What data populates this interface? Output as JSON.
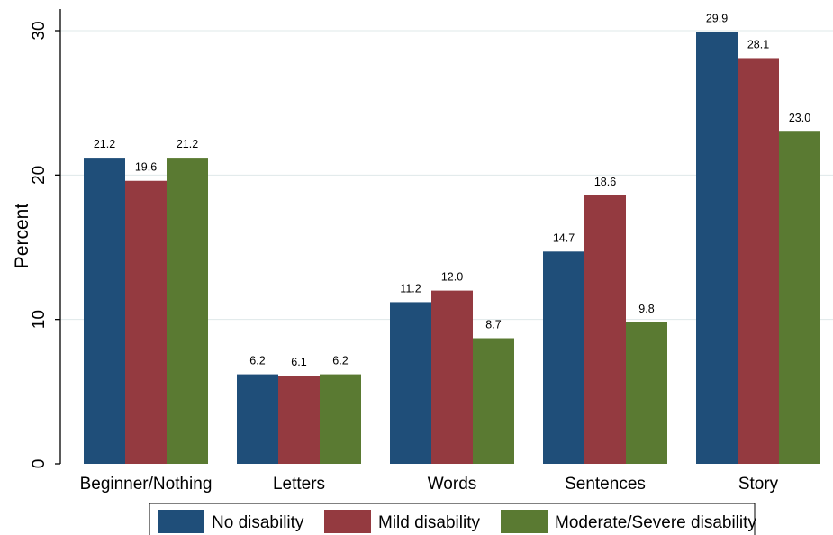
{
  "chart_data": {
    "type": "bar",
    "ylabel": "Percent",
    "xlabel": "",
    "ylim": [
      0,
      31.2
    ],
    "yticks": [
      0,
      10,
      20,
      30
    ],
    "grid": true,
    "legend_position": "bottom",
    "categories": [
      "Beginner/Nothing",
      "Letters",
      "Words",
      "Sentences",
      "Story"
    ],
    "series": [
      {
        "name": "No disability",
        "color": "#1f4e79",
        "values": [
          21.2,
          6.2,
          11.2,
          14.7,
          29.9
        ],
        "labels": [
          "21.2",
          "6.2",
          "11.2",
          "14.7",
          "29.9"
        ]
      },
      {
        "name": "Mild disability",
        "color": "#943a40",
        "values": [
          19.6,
          6.1,
          12.0,
          18.6,
          28.1
        ],
        "labels": [
          "19.6",
          "6.1",
          "12.0",
          "18.6",
          "28.1"
        ]
      },
      {
        "name": "Moderate/Severe disability",
        "color": "#5a7a32",
        "values": [
          21.2,
          6.2,
          8.7,
          9.8,
          23.0
        ],
        "labels": [
          "21.2",
          "6.2",
          "8.7",
          "9.8",
          "23.0"
        ]
      }
    ]
  }
}
